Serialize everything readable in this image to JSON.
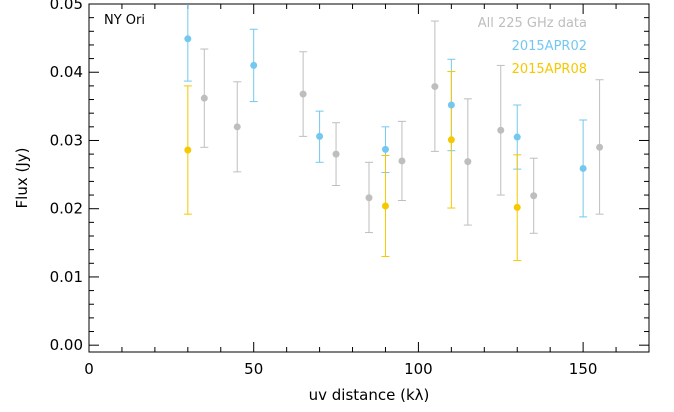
{
  "chart_data": {
    "type": "scatter",
    "annotation": "NY Ori",
    "xlabel": "uv distance (kλ)",
    "ylabel": "Flux (Jy)",
    "xlim": [
      0,
      170
    ],
    "ylim": [
      -0.001,
      0.05
    ],
    "x_ticks": [
      0,
      50,
      100,
      150
    ],
    "x_tick_labels": [
      "0",
      "50",
      "100",
      "150"
    ],
    "y_ticks": [
      0.0,
      0.01,
      0.02,
      0.03,
      0.04,
      0.05
    ],
    "y_tick_labels": [
      "0.00",
      "0.01",
      "0.02",
      "0.03",
      "0.04",
      "0.05"
    ],
    "grid": false,
    "legend_position": "top-right",
    "series": [
      {
        "name": "All 225 GHz data",
        "color": "#bebebe",
        "points": [
          {
            "x": 35,
            "y": 0.0362,
            "err_low": 0.029,
            "err_high": 0.0434
          },
          {
            "x": 45,
            "y": 0.032,
            "err_low": 0.0254,
            "err_high": 0.0386
          },
          {
            "x": 65,
            "y": 0.0368,
            "err_low": 0.0306,
            "err_high": 0.043
          },
          {
            "x": 75,
            "y": 0.028,
            "err_low": 0.0234,
            "err_high": 0.0326
          },
          {
            "x": 85,
            "y": 0.0216,
            "err_low": 0.0165,
            "err_high": 0.0268
          },
          {
            "x": 95,
            "y": 0.027,
            "err_low": 0.0212,
            "err_high": 0.0328
          },
          {
            "x": 105,
            "y": 0.0379,
            "err_low": 0.0284,
            "err_high": 0.0475
          },
          {
            "x": 115,
            "y": 0.0269,
            "err_low": 0.0176,
            "err_high": 0.0361
          },
          {
            "x": 125,
            "y": 0.0315,
            "err_low": 0.022,
            "err_high": 0.041
          },
          {
            "x": 135,
            "y": 0.0219,
            "err_low": 0.0164,
            "err_high": 0.0274
          },
          {
            "x": 155,
            "y": 0.029,
            "err_low": 0.0192,
            "err_high": 0.0389
          }
        ]
      },
      {
        "name": "2015APR02",
        "color": "#74c8f0",
        "points": [
          {
            "x": 30,
            "y": 0.0449,
            "err_low": 0.0387,
            "err_high": 0.051
          },
          {
            "x": 50,
            "y": 0.041,
            "err_low": 0.0357,
            "err_high": 0.0463
          },
          {
            "x": 70,
            "y": 0.0306,
            "err_low": 0.0268,
            "err_high": 0.0343
          },
          {
            "x": 90,
            "y": 0.0287,
            "err_low": 0.0253,
            "err_high": 0.032
          },
          {
            "x": 110,
            "y": 0.0352,
            "err_low": 0.0285,
            "err_high": 0.0419
          },
          {
            "x": 130,
            "y": 0.0305,
            "err_low": 0.0258,
            "err_high": 0.0352
          },
          {
            "x": 150,
            "y": 0.0259,
            "err_low": 0.0188,
            "err_high": 0.033
          }
        ]
      },
      {
        "name": "2015APR08",
        "color": "#f5c800",
        "points": [
          {
            "x": 30,
            "y": 0.0286,
            "err_low": 0.0192,
            "err_high": 0.038
          },
          {
            "x": 90,
            "y": 0.0204,
            "err_low": 0.013,
            "err_high": 0.0278
          },
          {
            "x": 110,
            "y": 0.0301,
            "err_low": 0.0201,
            "err_high": 0.0401
          },
          {
            "x": 130,
            "y": 0.0202,
            "err_low": 0.0124,
            "err_high": 0.0279
          }
        ]
      }
    ]
  }
}
